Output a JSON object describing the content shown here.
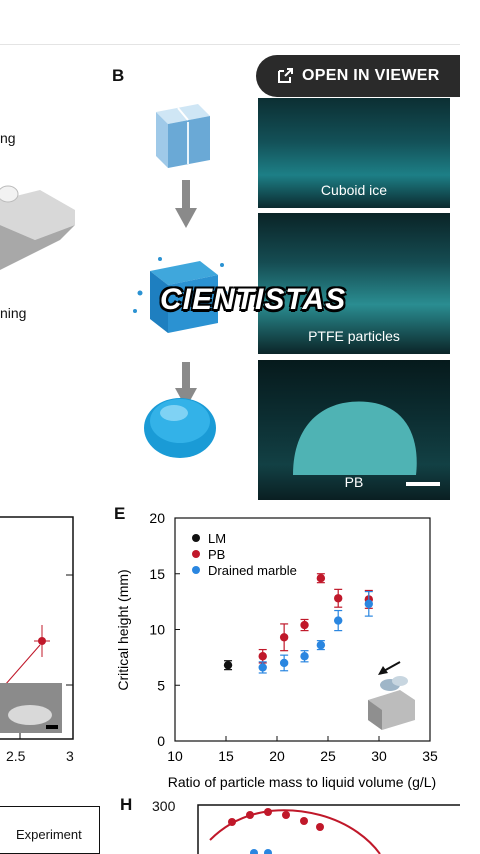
{
  "viewer_button": {
    "label": "OPEN IN VIEWER",
    "icon": "external-link-icon"
  },
  "panels": {
    "b_label": "B",
    "e_label": "E",
    "h_label": "H"
  },
  "panel_a": {
    "text_top": "ng",
    "text_bottom": "ning"
  },
  "panel_b": {
    "captions": [
      "Cuboid ice",
      "PTFE particles",
      "PB"
    ]
  },
  "watermark": "CIENTISTAS",
  "panel_d": {
    "x_ticks": [
      "2.5",
      "3"
    ]
  },
  "panel_g": {
    "legend": "Experiment"
  },
  "panel_h": {
    "y_tick": "300"
  },
  "chart_data": {
    "type": "scatter",
    "xlabel": "Ratio of particle mass to liquid volume (g/L)",
    "ylabel": "Critical height (mm)",
    "xlim": [
      10,
      35
    ],
    "ylim": [
      0,
      20
    ],
    "x_ticks": [
      "10",
      "15",
      "20",
      "25",
      "30",
      "35"
    ],
    "y_ticks": [
      "0",
      "5",
      "10",
      "15",
      "20"
    ],
    "legend_position": "top-left",
    "series": [
      {
        "name": "LM",
        "color": "#111111",
        "points": [
          {
            "x": 15.2,
            "y": 6.8,
            "err": 0.4
          }
        ]
      },
      {
        "name": "PB",
        "color": "#c0182a",
        "points": [
          {
            "x": 18.6,
            "y": 7.6,
            "err": 0.6
          },
          {
            "x": 20.7,
            "y": 9.3,
            "err": 1.2
          },
          {
            "x": 22.7,
            "y": 10.4,
            "err": 0.5
          },
          {
            "x": 24.3,
            "y": 14.6,
            "err": 0.4
          },
          {
            "x": 26.0,
            "y": 12.8,
            "err": 0.8
          },
          {
            "x": 29.0,
            "y": 12.7,
            "err": 0.8
          }
        ]
      },
      {
        "name": "Drained marble",
        "color": "#2a86e0",
        "points": [
          {
            "x": 18.6,
            "y": 6.6,
            "err": 0.5
          },
          {
            "x": 20.7,
            "y": 7.0,
            "err": 0.7
          },
          {
            "x": 22.7,
            "y": 7.6,
            "err": 0.5
          },
          {
            "x": 24.3,
            "y": 8.6,
            "err": 0.4
          },
          {
            "x": 26.0,
            "y": 10.8,
            "err": 0.9
          },
          {
            "x": 29.0,
            "y": 12.3,
            "err": 1.1
          }
        ]
      }
    ]
  }
}
